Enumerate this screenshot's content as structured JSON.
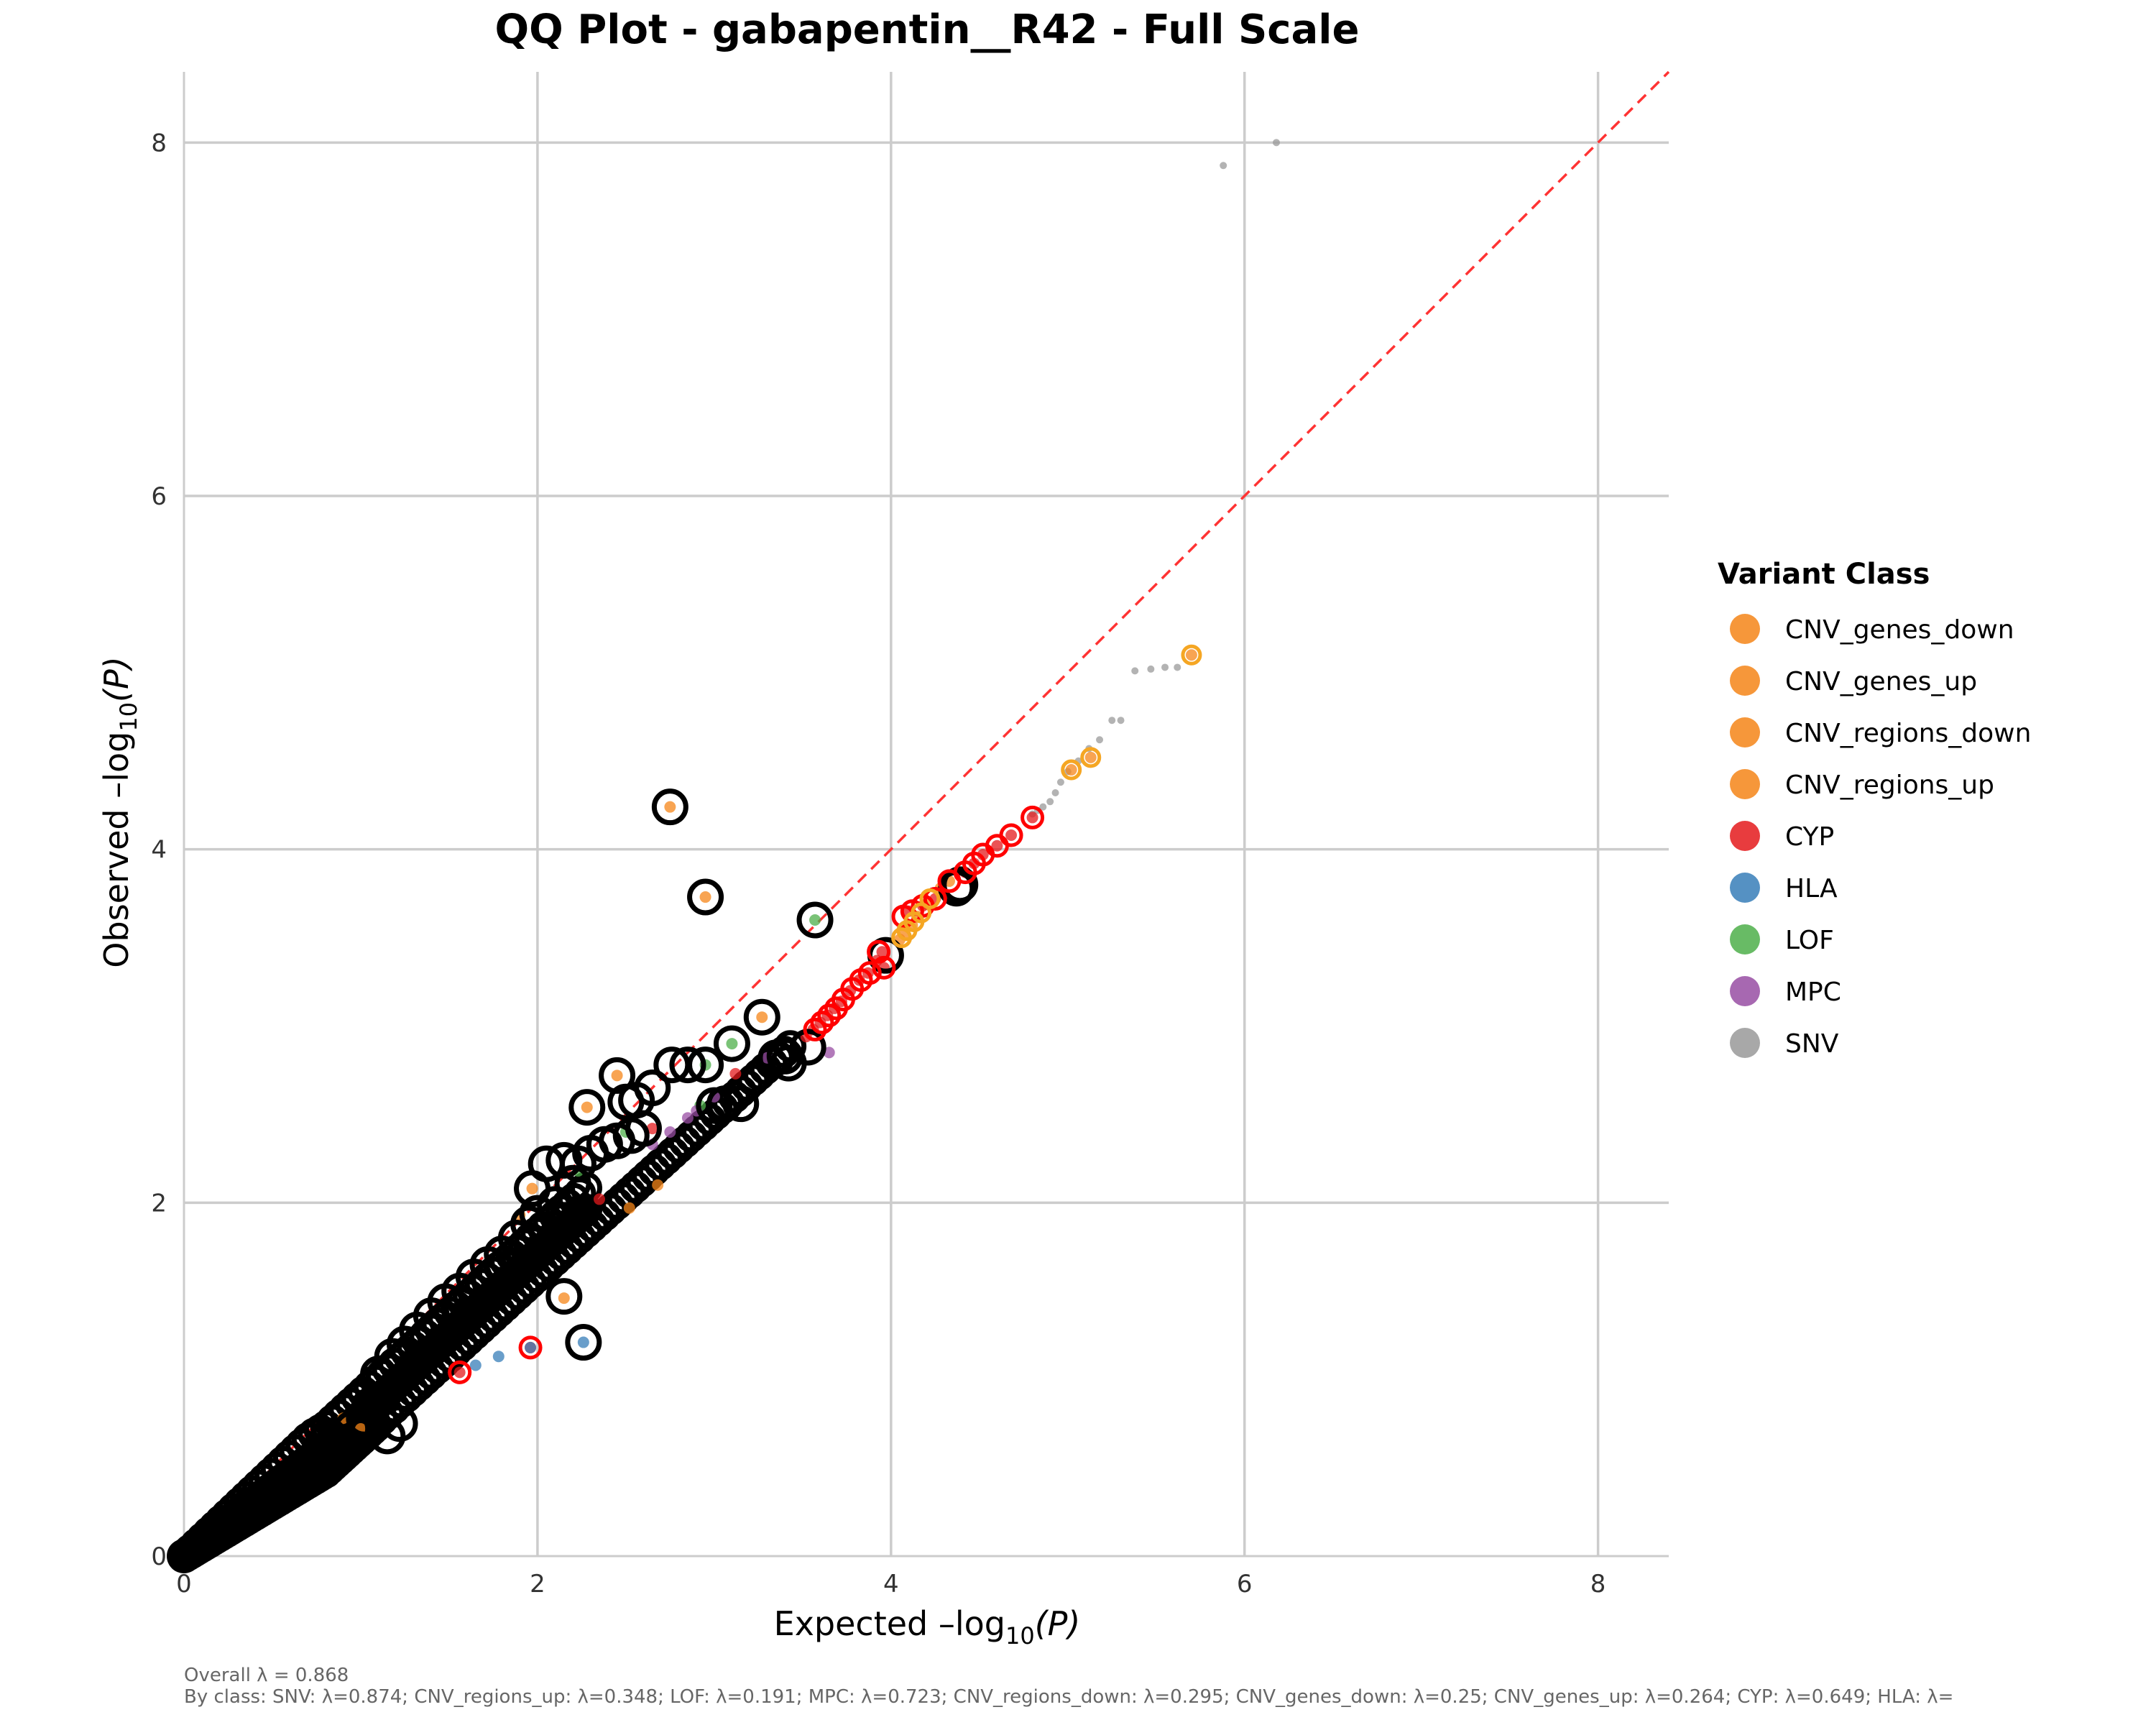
{
  "chart_data": {
    "type": "scatter",
    "title": "QQ Plot - gabapentin__R42 - Full Scale",
    "xlabel": {
      "prefix": "Expected  –log",
      "sub": "10",
      "suffix": "(P)"
    },
    "ylabel": {
      "prefix": "Observed  –log",
      "sub": "10",
      "suffix": "(P)"
    },
    "xlim": [
      0,
      8.4
    ],
    "ylim": [
      0,
      8.4
    ],
    "x_ticks": [
      0,
      2,
      4,
      6,
      8
    ],
    "y_ticks": [
      0,
      2,
      4,
      6,
      8
    ],
    "grid": true,
    "reference_line": {
      "type": "y=x",
      "color": "#ff3333",
      "style": "dashed"
    },
    "legend": {
      "title": "Variant Class",
      "position": "right",
      "entries": [
        {
          "name": "CNV_genes_down",
          "color": "#f58518"
        },
        {
          "name": "CNV_genes_up",
          "color": "#f58518"
        },
        {
          "name": "CNV_regions_down",
          "color": "#f58518"
        },
        {
          "name": "CNV_regions_up",
          "color": "#f58518"
        },
        {
          "name": "CYP",
          "color": "#e41a1c"
        },
        {
          "name": "HLA",
          "color": "#377eb8"
        },
        {
          "name": "LOF",
          "color": "#4daf4a"
        },
        {
          "name": "MPC",
          "color": "#984ea3"
        },
        {
          "name": "SNV",
          "color": "#999999"
        }
      ]
    },
    "series": [
      {
        "name": "SNV",
        "color": "#999999",
        "points": [
          [
            6.18,
            8.0
          ],
          [
            5.88,
            7.87
          ],
          [
            5.62,
            5.03
          ],
          [
            5.55,
            5.03
          ],
          [
            5.47,
            5.02
          ],
          [
            5.38,
            5.01
          ],
          [
            5.3,
            4.73
          ],
          [
            5.25,
            4.73
          ],
          [
            5.18,
            4.62
          ],
          [
            5.12,
            4.57
          ],
          [
            5.06,
            4.5
          ],
          [
            5.0,
            4.44
          ],
          [
            4.96,
            4.38
          ],
          [
            4.93,
            4.32
          ],
          [
            4.9,
            4.27
          ],
          [
            4.86,
            4.24
          ],
          [
            4.83,
            4.22
          ],
          [
            4.8,
            4.2
          ]
        ]
      },
      {
        "name": "CNV_regions_up",
        "color": "#f58518",
        "points": [
          [
            5.7,
            5.1
          ],
          [
            5.02,
            4.45
          ],
          [
            5.13,
            4.52
          ],
          [
            4.2,
            3.69
          ],
          [
            4.15,
            3.62
          ],
          [
            4.12,
            3.57
          ],
          [
            4.08,
            3.52
          ],
          [
            4.05,
            3.49
          ],
          [
            4.28,
            3.78
          ],
          [
            4.33,
            3.82
          ],
          [
            2.75,
            4.24
          ],
          [
            2.95,
            3.73
          ],
          [
            2.28,
            2.54
          ],
          [
            1.97,
            2.08
          ],
          [
            2.15,
            1.46
          ],
          [
            3.27,
            3.05
          ],
          [
            2.45,
            2.72
          ],
          [
            1.9,
            1.93
          ],
          [
            2.68,
            2.1
          ],
          [
            2.52,
            1.97
          ],
          [
            1.0,
            0.72
          ],
          [
            0.9,
            0.78
          ]
        ]
      },
      {
        "name": "CYP",
        "color": "#e41a1c",
        "points": [
          [
            4.8,
            4.18
          ],
          [
            4.68,
            4.08
          ],
          [
            4.6,
            4.02
          ],
          [
            4.52,
            3.97
          ],
          [
            4.47,
            3.92
          ],
          [
            4.42,
            3.87
          ],
          [
            4.25,
            3.72
          ],
          [
            4.18,
            3.68
          ],
          [
            4.1,
            3.65
          ],
          [
            3.95,
            3.42
          ],
          [
            3.92,
            3.37
          ],
          [
            3.87,
            3.3
          ],
          [
            3.82,
            3.26
          ],
          [
            3.77,
            3.2
          ],
          [
            3.72,
            3.14
          ],
          [
            3.68,
            3.1
          ],
          [
            3.64,
            3.06
          ],
          [
            3.6,
            3.02
          ],
          [
            3.56,
            2.98
          ],
          [
            3.52,
            2.94
          ],
          [
            3.96,
            3.33
          ],
          [
            1.96,
            1.18
          ],
          [
            1.56,
            1.04
          ],
          [
            2.65,
            2.42
          ],
          [
            2.35,
            2.02
          ],
          [
            3.12,
            2.73
          ]
        ]
      },
      {
        "name": "HLA",
        "color": "#377eb8",
        "points": [
          [
            1.96,
            1.18
          ],
          [
            1.78,
            1.13
          ],
          [
            1.65,
            1.08
          ],
          [
            2.26,
            1.21
          ]
        ]
      },
      {
        "name": "LOF",
        "color": "#4daf4a",
        "points": [
          [
            3.57,
            3.6
          ],
          [
            3.1,
            2.9
          ],
          [
            2.95,
            2.78
          ],
          [
            2.23,
            2.18
          ],
          [
            2.5,
            2.4
          ],
          [
            2.92,
            2.55
          ]
        ]
      },
      {
        "name": "MPC",
        "color": "#984ea3",
        "points": [
          [
            3.65,
            2.85
          ],
          [
            3.3,
            2.82
          ],
          [
            2.85,
            2.48
          ],
          [
            2.75,
            2.4
          ],
          [
            2.65,
            2.33
          ],
          [
            2.9,
            2.52
          ],
          [
            3.0,
            2.6
          ]
        ]
      },
      {
        "name": "highlighted",
        "color": "#000000",
        "points": [
          [
            2.75,
            4.24
          ],
          [
            2.95,
            3.73
          ],
          [
            3.57,
            3.6
          ],
          [
            3.27,
            3.05
          ],
          [
            3.1,
            2.9
          ],
          [
            2.45,
            2.72
          ],
          [
            2.95,
            2.78
          ],
          [
            2.85,
            2.78
          ],
          [
            2.76,
            2.78
          ],
          [
            2.65,
            2.65
          ],
          [
            2.56,
            2.58
          ],
          [
            2.5,
            2.57
          ],
          [
            2.28,
            2.54
          ],
          [
            3.15,
            2.56
          ],
          [
            3.06,
            2.56
          ],
          [
            3.0,
            2.55
          ],
          [
            2.6,
            2.42
          ],
          [
            2.53,
            2.38
          ],
          [
            2.45,
            2.35
          ],
          [
            2.38,
            2.33
          ],
          [
            2.3,
            2.28
          ],
          [
            2.23,
            2.22
          ],
          [
            2.15,
            2.24
          ],
          [
            2.05,
            2.22
          ],
          [
            1.97,
            2.08
          ],
          [
            2.2,
            2.11
          ],
          [
            2.16,
            1.9
          ],
          [
            2.1,
            1.99
          ],
          [
            2.0,
            1.94
          ],
          [
            1.95,
            1.88
          ],
          [
            1.88,
            1.8
          ],
          [
            1.8,
            1.71
          ],
          [
            1.72,
            1.65
          ],
          [
            1.64,
            1.58
          ],
          [
            1.56,
            1.5
          ],
          [
            1.48,
            1.44
          ],
          [
            1.4,
            1.36
          ],
          [
            1.32,
            1.28
          ],
          [
            1.25,
            1.2
          ],
          [
            1.18,
            1.13
          ],
          [
            1.1,
            1.03
          ],
          [
            1.05,
            0.85
          ],
          [
            1.02,
            0.78
          ],
          [
            0.95,
            0.72
          ],
          [
            1.22,
            0.75
          ],
          [
            1.15,
            0.68
          ],
          [
            0.82,
            0.68
          ],
          [
            2.15,
            1.47
          ],
          [
            2.26,
            1.21
          ],
          [
            3.35,
            2.82
          ],
          [
            3.4,
            2.83
          ],
          [
            3.42,
            2.79
          ],
          [
            3.53,
            2.88
          ],
          [
            3.97,
            3.4
          ],
          [
            4.37,
            3.78
          ],
          [
            4.39,
            3.8
          ]
        ]
      },
      {
        "name": "CYP_outline",
        "color": "#ff0000",
        "points": [
          [
            4.8,
            4.18
          ],
          [
            4.68,
            4.08
          ],
          [
            4.6,
            4.02
          ],
          [
            4.52,
            3.97
          ],
          [
            4.47,
            3.92
          ],
          [
            4.42,
            3.87
          ],
          [
            4.33,
            3.82
          ],
          [
            4.25,
            3.72
          ],
          [
            4.18,
            3.68
          ],
          [
            4.12,
            3.65
          ],
          [
            4.07,
            3.62
          ],
          [
            3.96,
            3.33
          ],
          [
            3.93,
            3.42
          ],
          [
            3.88,
            3.3
          ],
          [
            3.83,
            3.26
          ],
          [
            3.78,
            3.21
          ],
          [
            3.73,
            3.15
          ],
          [
            3.69,
            3.1
          ],
          [
            3.65,
            3.06
          ],
          [
            3.61,
            3.02
          ],
          [
            3.57,
            2.98
          ],
          [
            1.96,
            1.18
          ],
          [
            1.56,
            1.04
          ]
        ]
      },
      {
        "name": "CNV_outline",
        "color": "#f5a623",
        "points": [
          [
            5.7,
            5.1
          ],
          [
            5.13,
            4.52
          ],
          [
            5.02,
            4.45
          ],
          [
            4.22,
            3.72
          ],
          [
            4.17,
            3.64
          ],
          [
            4.13,
            3.59
          ],
          [
            4.09,
            3.54
          ],
          [
            4.06,
            3.5
          ]
        ]
      }
    ],
    "annotations": {
      "overall": "Overall λ = 0.868",
      "by_class": "By class: SNV: λ=0.874; CNV_regions_up: λ=0.348; LOF: λ=0.191; MPC: λ=0.723; CNV_regions_down: λ=0.295; CNV_genes_down: λ=0.25; CNV_genes_up: λ=0.264; CYP: λ=0.649; HLA: λ="
    }
  }
}
